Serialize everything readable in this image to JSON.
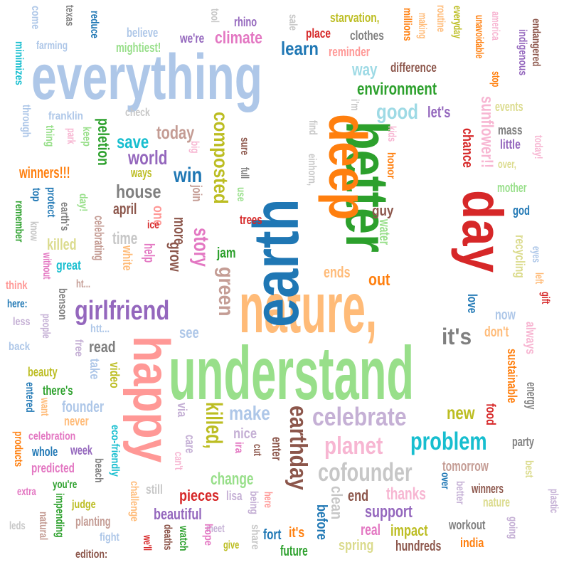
{
  "words": [
    {
      "text": "everything",
      "color": "#aec7e8"
    },
    {
      "text": "understand",
      "color": "#98df8a"
    },
    {
      "text": "nature,",
      "color": "#ffbb78"
    },
    {
      "text": "earth",
      "color": "#1f77b4"
    },
    {
      "text": "better",
      "color": "#2ca02c"
    },
    {
      "text": "deep",
      "color": "#ff7f0e"
    },
    {
      "text": "day",
      "color": "#d62728"
    },
    {
      "text": "happy",
      "color": "#ff9896"
    },
    {
      "text": "girlfriend",
      "color": "#9467bd"
    },
    {
      "text": "celebrate",
      "color": "#c5b0d5"
    },
    {
      "text": "cofounder",
      "color": "#c7c7c7"
    },
    {
      "text": "problem",
      "color": "#17becf"
    },
    {
      "text": "planet",
      "color": "#f7b6d2"
    },
    {
      "text": "earthday",
      "color": "#8c564b"
    },
    {
      "text": "green",
      "color": "#c49c94"
    },
    {
      "text": "killed,",
      "color": "#bcbd22"
    },
    {
      "text": "composted",
      "color": "#bcbd22"
    },
    {
      "text": "story",
      "color": "#e377c2"
    },
    {
      "text": "it's",
      "color": "#7f7f7f"
    },
    {
      "text": "environment",
      "color": "#2ca02c"
    },
    {
      "text": "good",
      "color": "#9edae5"
    },
    {
      "text": "sunflower!!",
      "color": "#f7b6d2"
    },
    {
      "text": "climate",
      "color": "#e377c2"
    },
    {
      "text": "learn",
      "color": "#1f77b4"
    },
    {
      "text": "win",
      "color": "#1f77b4"
    },
    {
      "text": "world",
      "color": "#9467bd"
    },
    {
      "text": "save",
      "color": "#17becf"
    },
    {
      "text": "today",
      "color": "#c49c94"
    },
    {
      "text": "house",
      "color": "#7f7f7f"
    },
    {
      "text": "peletion",
      "color": "#2ca02c"
    },
    {
      "text": "winners!!!",
      "color": "#ff7f0e"
    },
    {
      "text": "make",
      "color": "#aec7e8"
    },
    {
      "text": "new",
      "color": "#bcbd22"
    },
    {
      "text": "change",
      "color": "#98df8a"
    },
    {
      "text": "support",
      "color": "#9467bd"
    },
    {
      "text": "thanks",
      "color": "#f7b6d2"
    },
    {
      "text": "beautiful",
      "color": "#9467bd"
    },
    {
      "text": "pieces",
      "color": "#d62728"
    },
    {
      "text": "impact",
      "color": "#bcbd22"
    },
    {
      "text": "real",
      "color": "#e377c2"
    },
    {
      "text": "spring",
      "color": "#dbdb8d"
    },
    {
      "text": "hundreds",
      "color": "#8c564b"
    },
    {
      "text": "future",
      "color": "#2ca02c"
    },
    {
      "text": "it's",
      "color": "#ff7f0e"
    },
    {
      "text": "before",
      "color": "#1f77b4"
    },
    {
      "text": "fort",
      "color": "#1f77b4"
    },
    {
      "text": "clean",
      "color": "#c7c7c7"
    },
    {
      "text": "end",
      "color": "#8c564b"
    },
    {
      "text": "tomorrow",
      "color": "#c49c94"
    },
    {
      "text": "winners",
      "color": "#8c564b"
    },
    {
      "text": "nature",
      "color": "#dbdb8d"
    },
    {
      "text": "workout",
      "color": "#7f7f7f"
    },
    {
      "text": "india",
      "color": "#ff7f0e"
    },
    {
      "text": "party",
      "color": "#7f7f7f"
    },
    {
      "text": "sustainable",
      "color": "#ff7f0e"
    },
    {
      "text": "energy",
      "color": "#7f7f7f"
    },
    {
      "text": "food",
      "color": "#d62728"
    },
    {
      "text": "always",
      "color": "#f7b6d2"
    },
    {
      "text": "don't",
      "color": "#ffbb78"
    },
    {
      "text": "now",
      "color": "#aec7e8"
    },
    {
      "text": "love",
      "color": "#1f77b4"
    },
    {
      "text": "recycling",
      "color": "#dbdb8d"
    },
    {
      "text": "god",
      "color": "#1f77b4"
    },
    {
      "text": "mother",
      "color": "#98df8a"
    },
    {
      "text": "over,",
      "color": "#dbdb8d"
    },
    {
      "text": "little",
      "color": "#9467bd"
    },
    {
      "text": "mass",
      "color": "#7f7f7f"
    },
    {
      "text": "events",
      "color": "#dbdb8d"
    },
    {
      "text": "chance",
      "color": "#d62728"
    },
    {
      "text": "let's",
      "color": "#9467bd"
    },
    {
      "text": "way",
      "color": "#9edae5"
    },
    {
      "text": "difference",
      "color": "#8c564b"
    },
    {
      "text": "reminder",
      "color": "#ff9896"
    },
    {
      "text": "place",
      "color": "#d62728"
    },
    {
      "text": "clothes",
      "color": "#7f7f7f"
    },
    {
      "text": "starvation,",
      "color": "#bcbd22"
    },
    {
      "text": "we're",
      "color": "#9467bd"
    },
    {
      "text": "rhino",
      "color": "#9467bd"
    },
    {
      "text": "believe",
      "color": "#aec7e8"
    },
    {
      "text": "mightiest!",
      "color": "#98df8a"
    },
    {
      "text": "farming",
      "color": "#aec7e8"
    },
    {
      "text": "franklin",
      "color": "#aec7e8"
    },
    {
      "text": "check",
      "color": "#c7c7c7"
    },
    {
      "text": "ways",
      "color": "#bcbd22"
    },
    {
      "text": "april",
      "color": "#8c564b"
    },
    {
      "text": "time",
      "color": "#c7c7c7"
    },
    {
      "text": "killed",
      "color": "#dbdb8d"
    },
    {
      "text": "great",
      "color": "#17becf"
    },
    {
      "text": "trees",
      "color": "#d62728"
    },
    {
      "text": "jam",
      "color": "#2ca02c"
    },
    {
      "text": "ends",
      "color": "#ffbb78"
    },
    {
      "text": "out",
      "color": "#ff7f0e"
    },
    {
      "text": "guy",
      "color": "#8c564b"
    },
    {
      "text": "see",
      "color": "#aec7e8"
    },
    {
      "text": "read",
      "color": "#7f7f7f"
    },
    {
      "text": "founder",
      "color": "#aec7e8"
    },
    {
      "text": "beauty",
      "color": "#bcbd22"
    },
    {
      "text": "there's",
      "color": "#2ca02c"
    },
    {
      "text": "week",
      "color": "#9467bd"
    },
    {
      "text": "whole",
      "color": "#1f77b4"
    },
    {
      "text": "predicted",
      "color": "#e377c2"
    },
    {
      "text": "celebration",
      "color": "#e377c2"
    },
    {
      "text": "never",
      "color": "#ffbb78"
    },
    {
      "text": "you're",
      "color": "#2ca02c"
    },
    {
      "text": "extra",
      "color": "#e377c2"
    },
    {
      "text": "judge",
      "color": "#bcbd22"
    },
    {
      "text": "planting",
      "color": "#c49c94"
    },
    {
      "text": "fight",
      "color": "#aec7e8"
    },
    {
      "text": "edition:",
      "color": "#8c564b"
    },
    {
      "text": "meet",
      "color": "#c5b0d5"
    },
    {
      "text": "give",
      "color": "#bcbd22"
    },
    {
      "text": "nice",
      "color": "#c5b0d5"
    },
    {
      "text": "think",
      "color": "#ff9896"
    },
    {
      "text": "here:",
      "color": "#1f77b4"
    },
    {
      "text": "less",
      "color": "#c5b0d5"
    },
    {
      "text": "back",
      "color": "#aec7e8"
    },
    {
      "text": "leds",
      "color": "#c7c7c7"
    },
    {
      "text": "lisa",
      "color": "#c5b0d5"
    },
    {
      "text": "here",
      "color": "#ff9896"
    },
    {
      "text": "help",
      "color": "#e377c2"
    },
    {
      "text": "grow",
      "color": "#8c564b"
    },
    {
      "text": "more",
      "color": "#8c564b"
    },
    {
      "text": "one",
      "color": "#ff9896"
    },
    {
      "text": "join",
      "color": "#c49c94"
    },
    {
      "text": "take",
      "color": "#aec7e8"
    },
    {
      "text": "video",
      "color": "#bcbd22"
    },
    {
      "text": "via",
      "color": "#c5b0d5"
    },
    {
      "text": "care",
      "color": "#c5b0d5"
    },
    {
      "text": "still",
      "color": "#c7c7c7"
    },
    {
      "text": "watch",
      "color": "#2ca02c"
    },
    {
      "text": "hope",
      "color": "#e377c2"
    },
    {
      "text": "we'll",
      "color": "#d62728"
    },
    {
      "text": "deaths",
      "color": "#8c564b"
    },
    {
      "text": "share",
      "color": "#c7c7c7"
    },
    {
      "text": "being",
      "color": "#c5b0d5"
    },
    {
      "text": "enter",
      "color": "#8c564b"
    },
    {
      "text": "entered",
      "color": "#1f77b4"
    },
    {
      "text": "want",
      "color": "#ffbb78"
    },
    {
      "text": "products",
      "color": "#ff7f0e"
    },
    {
      "text": "natural",
      "color": "#c49c94"
    },
    {
      "text": "impending",
      "color": "#2ca02c"
    },
    {
      "text": "beach",
      "color": "#7f7f7f"
    },
    {
      "text": "eco-friendly",
      "color": "#17becf"
    },
    {
      "text": "challenge",
      "color": "#ffbb78"
    },
    {
      "text": "white",
      "color": "#ffbb78"
    },
    {
      "text": "celebrating",
      "color": "#c49c94"
    },
    {
      "text": "ice",
      "color": "#d62728"
    },
    {
      "text": "people",
      "color": "#c5b0d5"
    },
    {
      "text": "benson",
      "color": "#7f7f7f"
    },
    {
      "text": "without",
      "color": "#e377c2"
    },
    {
      "text": "know",
      "color": "#c7c7c7"
    },
    {
      "text": "remember",
      "color": "#2ca02c"
    },
    {
      "text": "top",
      "color": "#1f77b4"
    },
    {
      "text": "earth's",
      "color": "#7f7f7f"
    },
    {
      "text": "protect",
      "color": "#1f77b4"
    },
    {
      "text": "day!",
      "color": "#98df8a"
    },
    {
      "text": "park",
      "color": "#f7b6d2"
    },
    {
      "text": "keep",
      "color": "#98df8a"
    },
    {
      "text": "thing",
      "color": "#98df8a"
    },
    {
      "text": "through",
      "color": "#aec7e8"
    },
    {
      "text": "minimizes",
      "color": "#17becf"
    },
    {
      "text": "come",
      "color": "#aec7e8"
    },
    {
      "text": "texas",
      "color": "#7f7f7f"
    },
    {
      "text": "reduce",
      "color": "#1f77b4"
    },
    {
      "text": "tool",
      "color": "#c7c7c7"
    },
    {
      "text": "sale",
      "color": "#c7c7c7"
    },
    {
      "text": "millions",
      "color": "#ff7f0e"
    },
    {
      "text": "making",
      "color": "#ffbb78"
    },
    {
      "text": "routine",
      "color": "#ffbb78"
    },
    {
      "text": "everyday",
      "color": "#bcbd22"
    },
    {
      "text": "unavoidable",
      "color": "#ff7f0e"
    },
    {
      "text": "america",
      "color": "#f7b6d2"
    },
    {
      "text": "stop",
      "color": "#ff7f0e"
    },
    {
      "text": "indigenous",
      "color": "#9467bd"
    },
    {
      "text": "endangered",
      "color": "#8c564b"
    },
    {
      "text": "today!",
      "color": "#f7b6d2"
    },
    {
      "text": "i'm",
      "color": "#c7c7c7"
    },
    {
      "text": "find",
      "color": "#c7c7c7"
    },
    {
      "text": "einhorn,",
      "color": "#c7c7c7"
    },
    {
      "text": "kids",
      "color": "#f7b6d2"
    },
    {
      "text": "honor",
      "color": "#ff7f0e"
    },
    {
      "text": "big",
      "color": "#f7b6d2"
    },
    {
      "text": "sure",
      "color": "#8c564b"
    },
    {
      "text": "full",
      "color": "#7f7f7f"
    },
    {
      "text": "use",
      "color": "#98df8a"
    },
    {
      "text": "water",
      "color": "#98df8a"
    },
    {
      "text": "eyes",
      "color": "#aec7e8"
    },
    {
      "text": "left",
      "color": "#ffbb78"
    },
    {
      "text": "gift",
      "color": "#d62728"
    },
    {
      "text": "htt...",
      "color": "#aec7e8"
    },
    {
      "text": "ht...",
      "color": "#c49c94"
    },
    {
      "text": "free",
      "color": "#c5b0d5"
    },
    {
      "text": "can't",
      "color": "#f7b6d2"
    },
    {
      "text": "cut",
      "color": "#8c564b"
    },
    {
      "text": "ira",
      "color": "#e377c2"
    },
    {
      "text": "over",
      "color": "#1f77b4"
    },
    {
      "text": "better",
      "color": "#c5b0d5"
    },
    {
      "text": "going",
      "color": "#c5b0d5"
    },
    {
      "text": "best",
      "color": "#dbdb8d"
    },
    {
      "text": "plastic",
      "color": "#c5b0d5"
    }
  ]
}
